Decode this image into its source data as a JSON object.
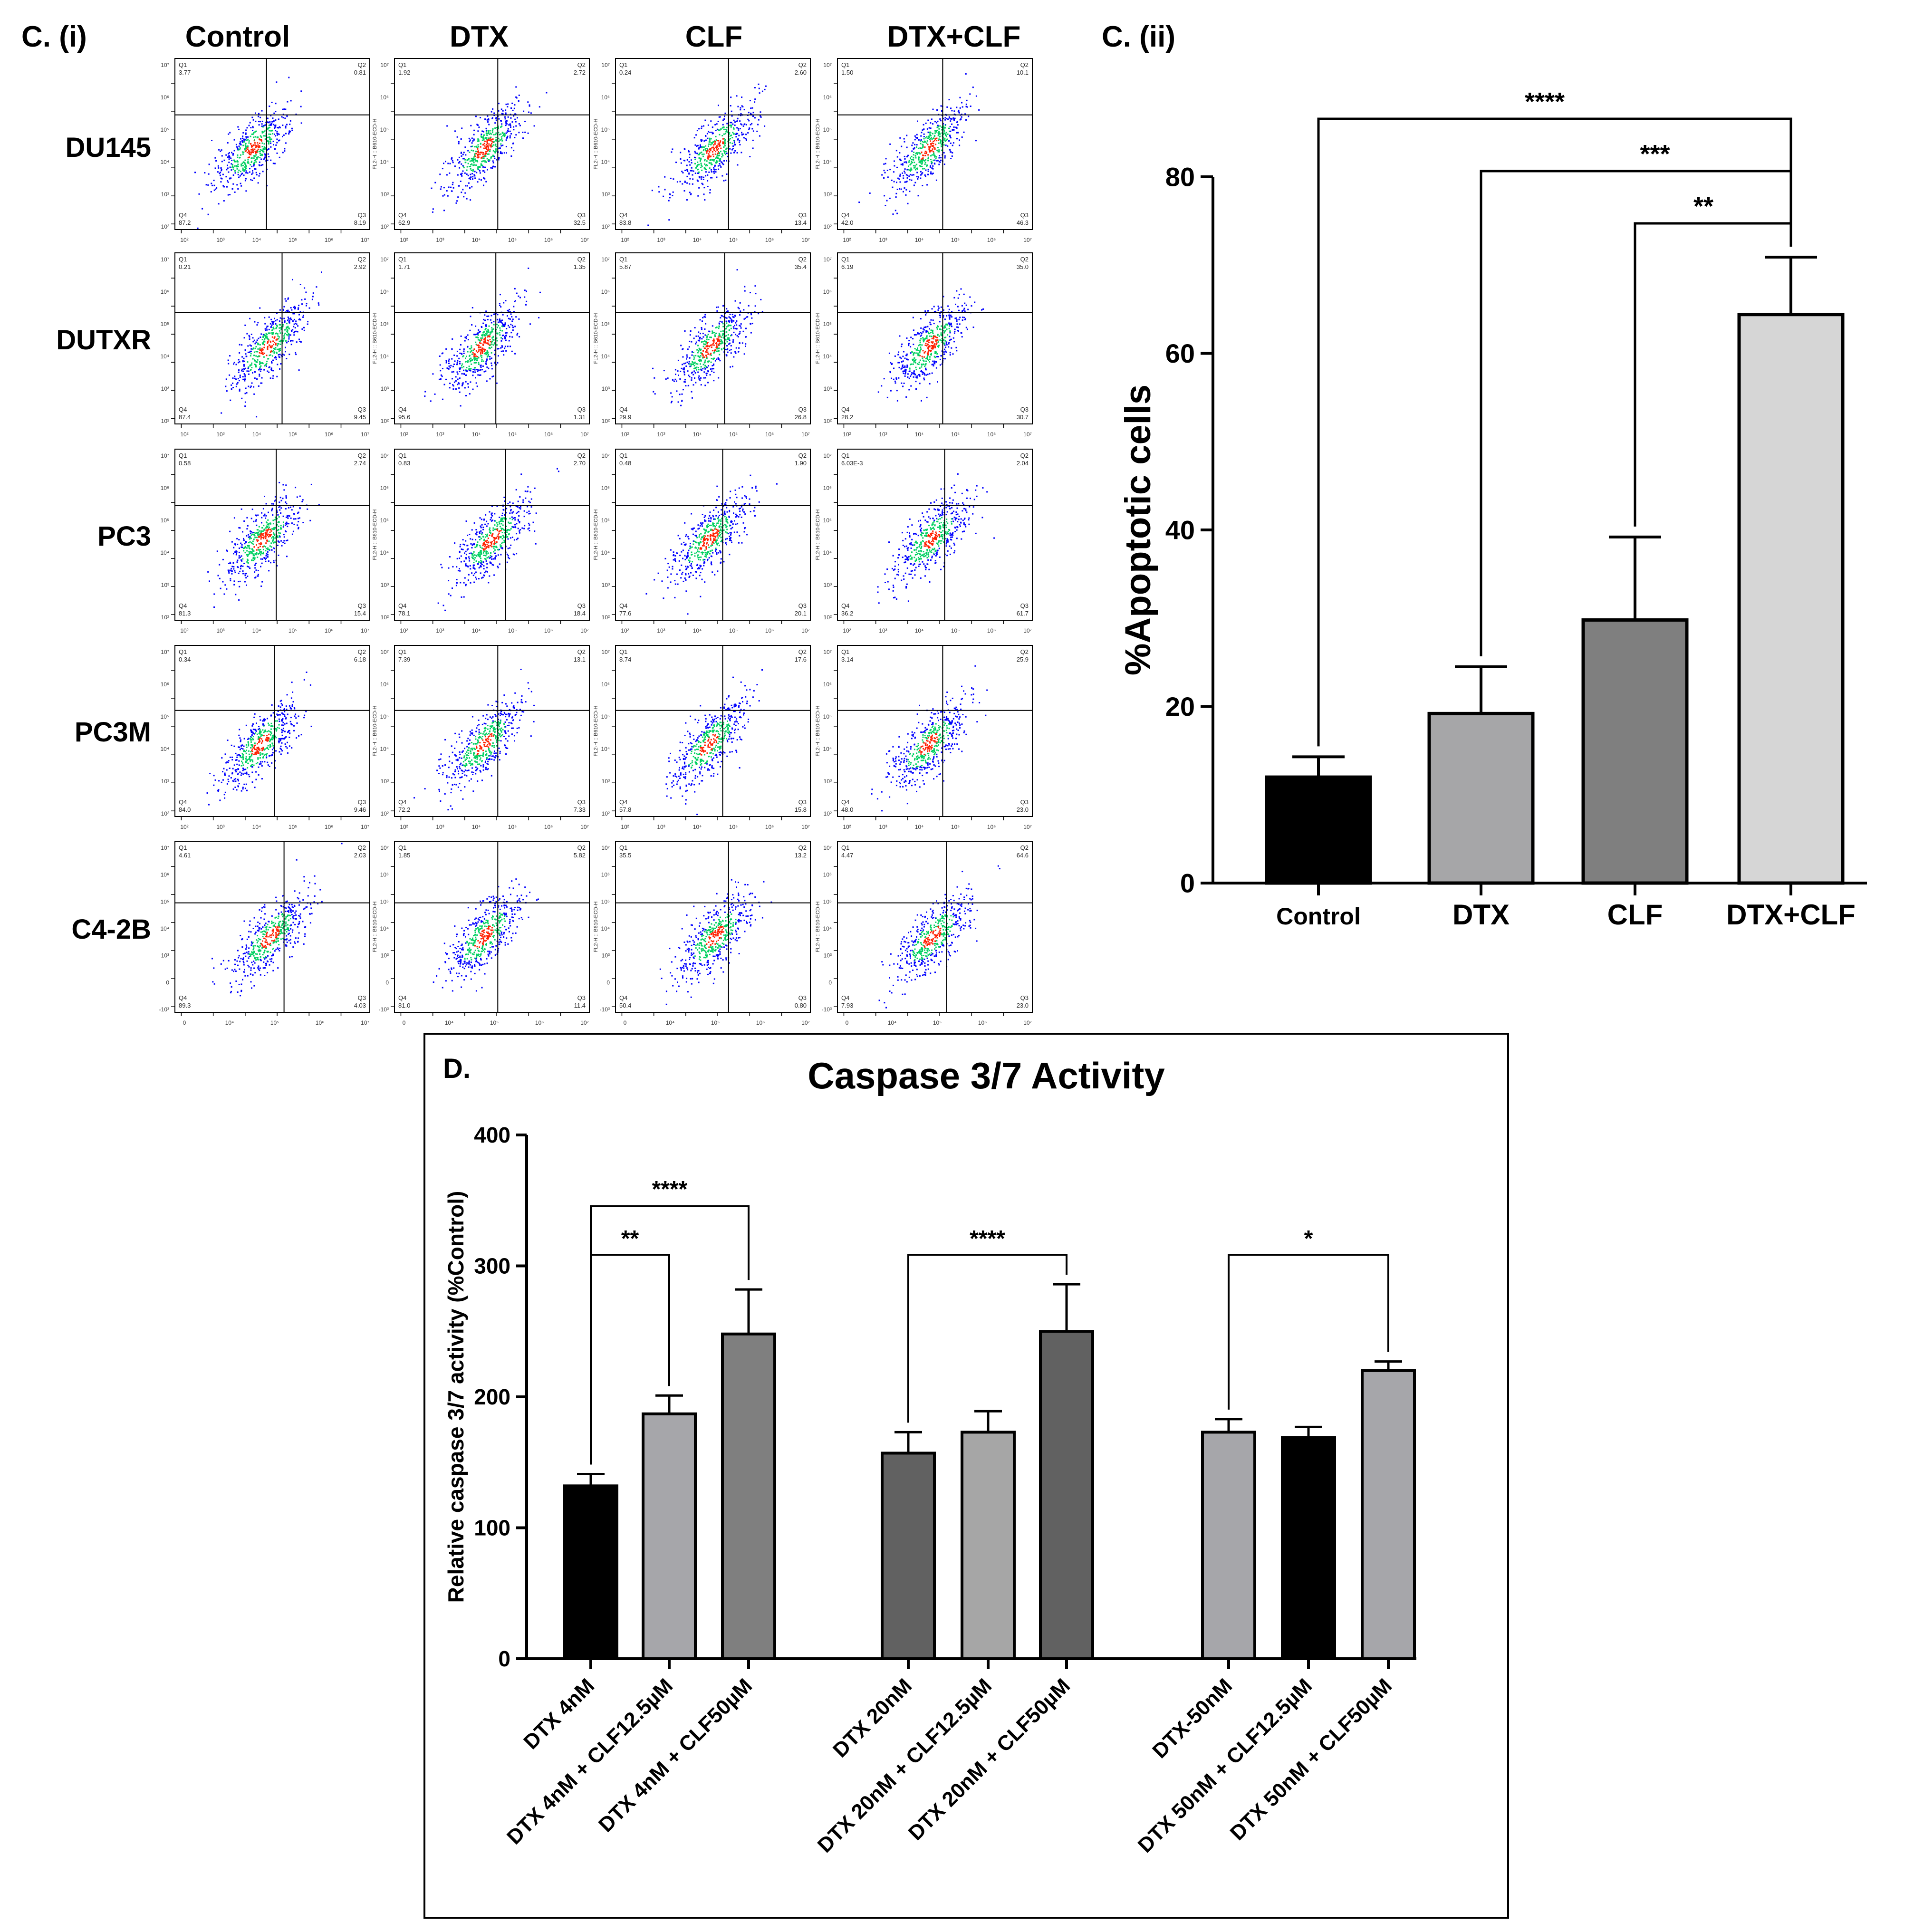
{
  "panel_c_i": {
    "label": "C. (i)",
    "columns": [
      "Control",
      "DTX",
      "CLF",
      "DTX+CLF"
    ],
    "rows": [
      "DU145",
      "DUTXR",
      "PC3",
      "PC3M",
      "C4-2B"
    ],
    "quadrant_labels": [
      "Q1",
      "Q2",
      "Q3",
      "Q4"
    ],
    "y_axis_label": "FL2-H :: B610-ECD-H",
    "x_ticks": [
      "10²",
      "10³",
      "10⁴",
      "10⁵",
      "10⁶",
      "10⁷"
    ],
    "y_ticks": [
      "10⁷",
      "10⁶",
      "10⁵",
      "10⁴",
      "10³",
      "10²"
    ],
    "c42b_x_ticks": [
      "0",
      "10⁴",
      "10⁵",
      "10⁶",
      "10⁷"
    ],
    "c42b_y_ticks": [
      "10⁷",
      "10⁶",
      "10⁵",
      "10⁴",
      "10³",
      "0",
      "-10³"
    ],
    "plots": [
      [
        {
          "q1": "3.77",
          "q2": "0.81",
          "q3": "8.19",
          "q4": "87.2"
        },
        {
          "q1": "1.92",
          "q2": "2.72",
          "q3": "32.5",
          "q4": "62.9"
        },
        {
          "q1": "0.24",
          "q2": "2.60",
          "q3": "13.4",
          "q4": "83.8"
        },
        {
          "q1": "1.50",
          "q2": "10.1",
          "q3": "46.3",
          "q4": "42.0"
        }
      ],
      [
        {
          "q1": "0.21",
          "q2": "2.92",
          "q3": "9.45",
          "q4": "87.4"
        },
        {
          "q1": "1.71",
          "q2": "1.35",
          "q3": "1.31",
          "q4": "95.6"
        },
        {
          "q1": "5.87",
          "q2": "35.4",
          "q3": "26.8",
          "q4": "29.9"
        },
        {
          "q1": "6.19",
          "q2": "35.0",
          "q3": "30.7",
          "q4": "28.2"
        }
      ],
      [
        {
          "q1": "0.58",
          "q2": "2.74",
          "q3": "15.4",
          "q4": "81.3"
        },
        {
          "q1": "0.83",
          "q2": "2.70",
          "q3": "18.4",
          "q4": "78.1"
        },
        {
          "q1": "0.48",
          "q2": "1.90",
          "q3": "20.1",
          "q4": "77.6"
        },
        {
          "q1": "6.03E-3",
          "q2": "2.04",
          "q3": "61.7",
          "q4": "36.2"
        }
      ],
      [
        {
          "q1": "0.34",
          "q2": "6.18",
          "q3": "9.46",
          "q4": "84.0"
        },
        {
          "q1": "7.39",
          "q2": "13.1",
          "q3": "7.33",
          "q4": "72.2"
        },
        {
          "q1": "8.74",
          "q2": "17.6",
          "q3": "15.8",
          "q4": "57.8"
        },
        {
          "q1": "3.14",
          "q2": "25.9",
          "q3": "23.0",
          "q4": "48.0"
        }
      ],
      [
        {
          "q1": "4.61",
          "q2": "2.03",
          "q3": "4.03",
          "q4": "89.3"
        },
        {
          "q1": "1.85",
          "q2": "5.82",
          "q3": "11.4",
          "q4": "81.0"
        },
        {
          "q1": "35.5",
          "q2": "13.2",
          "q3": "0.80",
          "q4": "50.4"
        },
        {
          "q1": "4.47",
          "q2": "64.6",
          "q3": "23.0",
          "q4": "7.93"
        }
      ]
    ],
    "colors": {
      "dense": "#ff2000",
      "mid": "#00d060",
      "sparse": "#0000ff"
    }
  },
  "chart_data": [
    {
      "type": "bar",
      "label": "C. (ii)",
      "title": "",
      "xlabel": "",
      "ylabel": "%Apoptotic cells",
      "categories": [
        "Control",
        "DTX",
        "CLF",
        "DTX+CLF"
      ],
      "values": [
        12,
        19.2,
        29.8,
        64.4
      ],
      "errors": [
        2.3,
        5.3,
        9.4,
        6.5
      ],
      "colors": [
        "#000000",
        "#a6a6a8",
        "#7f7f7f",
        "#d6d6d6"
      ],
      "ylim": [
        0,
        80
      ],
      "yticks": [
        0,
        20,
        40,
        60,
        80
      ],
      "significance": [
        {
          "from": 0,
          "to": 3,
          "label": "****"
        },
        {
          "from": 1,
          "to": 3,
          "label": "***"
        },
        {
          "from": 2,
          "to": 3,
          "label": "**"
        }
      ]
    },
    {
      "type": "bar",
      "label": "D.",
      "title": "Caspase 3/7 Activity",
      "xlabel": "",
      "ylabel": "Relative caspase 3/7 activity (%Control)",
      "categories": [
        "DTX 4nM",
        "DTX 4nM + CLF12.5µM",
        "DTX 4nM + CLF50µM",
        "DTX 20nM",
        "DTX 20nM + CLF12.5µM",
        "DTX 20nM + CLF50µM",
        "DTX-50nM",
        "DTX 50nM + CLF12.5µM",
        "DTX 50nM + CLF50µM"
      ],
      "values": [
        132,
        187,
        248,
        157,
        173,
        250,
        173,
        169,
        220
      ],
      "errors": [
        9,
        14,
        34,
        16,
        16,
        36,
        10,
        8,
        7
      ],
      "colors": [
        "#000000",
        "#a6a6aa",
        "#7f7f7f",
        "#616161",
        "#a6a6a6",
        "#616161",
        "#a6a6aa",
        "#000000",
        "#a6a6aa"
      ],
      "groups": [
        [
          0,
          1,
          2
        ],
        [
          3,
          4,
          5
        ],
        [
          6,
          7,
          8
        ]
      ],
      "ylim": [
        0,
        400
      ],
      "yticks": [
        0,
        100,
        200,
        300,
        400
      ],
      "significance": [
        {
          "from": 0,
          "to": 2,
          "label": "****"
        },
        {
          "from": 0,
          "to": 1,
          "label": "**"
        },
        {
          "from": 3,
          "to": 5,
          "label": "****"
        },
        {
          "from": 6,
          "to": 8,
          "label": "*"
        }
      ]
    }
  ]
}
